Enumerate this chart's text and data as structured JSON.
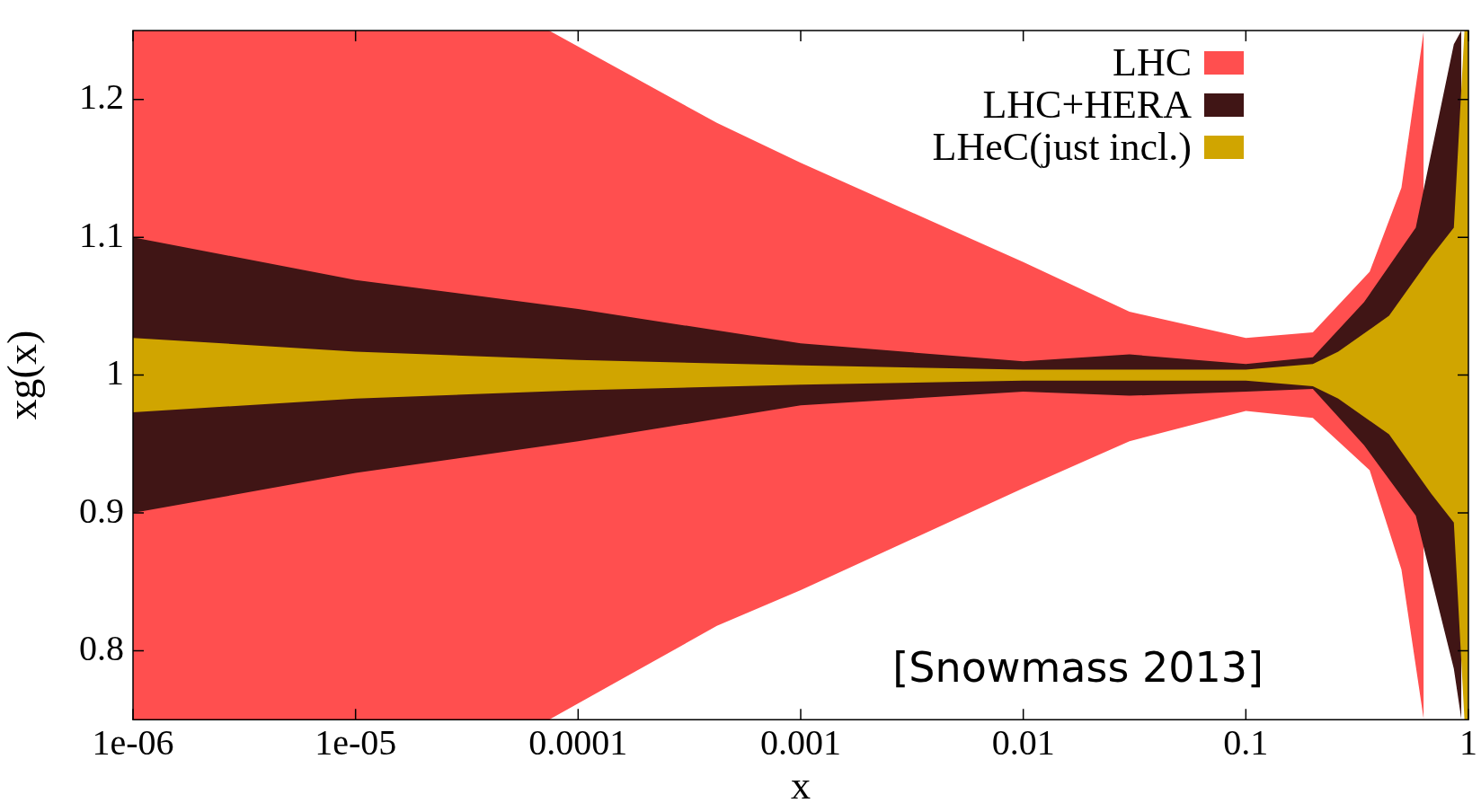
{
  "chart_data": {
    "type": "line",
    "xlabel": "x",
    "ylabel": "xg(x)",
    "log": "x",
    "xlim": [
      1e-06,
      1
    ],
    "xticks": [
      {
        "value": 1e-06,
        "label": "1e-06"
      },
      {
        "value": 1e-05,
        "label": "1e-05"
      },
      0.0001,
      0.001,
      0.01,
      0.1,
      1
    ],
    "ylim": [
      0.75,
      1.25
    ],
    "yticks": [
      0.8,
      0.9,
      1,
      1.1,
      1.2
    ],
    "grid": false,
    "legend": "top right",
    "series": [
      {
        "name": "LHC",
        "color": "#ff4f4f",
        "x": [
          1e-06,
          7.4e-05,
          0.00042,
          0.001,
          0.01,
          0.03,
          0.1,
          0.2,
          0.36,
          0.5,
          0.63
        ],
        "values": [
          null,
          null,
          null,
          null,
          null,
          null,
          null,
          null,
          null,
          null,
          null
        ],
        "upper": [
          1.25,
          1.25,
          1.183,
          1.154,
          1.082,
          1.046,
          1.027,
          1.031,
          1.075,
          1.136,
          1.25
        ],
        "lower": [
          0.75,
          0.75,
          0.818,
          0.844,
          0.918,
          0.952,
          0.974,
          0.969,
          0.931,
          0.859,
          0.75
        ]
      },
      {
        "name": "LHC+HERA",
        "color": "#401515",
        "x": [
          1e-06,
          1e-05,
          0.0001,
          0.001,
          0.01,
          0.03,
          0.1,
          0.2,
          0.34,
          0.58,
          0.86,
          0.93
        ],
        "values": [
          null,
          null,
          null,
          null,
          null,
          null,
          null,
          null,
          null,
          null,
          null,
          null
        ],
        "upper": [
          1.1,
          1.069,
          1.048,
          1.023,
          1.01,
          1.015,
          1.008,
          1.013,
          1.053,
          1.107,
          1.24,
          1.25
        ],
        "lower": [
          0.9,
          0.929,
          0.952,
          0.978,
          0.988,
          0.985,
          0.988,
          0.99,
          0.949,
          0.898,
          0.787,
          0.75
        ]
      },
      {
        "name": "LHeC(just incl.)",
        "color": "#d0a500",
        "x": [
          1e-06,
          1e-05,
          0.0001,
          0.001,
          0.01,
          0.1,
          0.2,
          0.26,
          0.44,
          0.68,
          0.86,
          0.96,
          1
        ],
        "values": [
          null,
          null,
          null,
          null,
          null,
          null,
          null,
          null,
          null,
          null,
          null,
          null,
          null
        ],
        "upper": [
          1.027,
          1.017,
          1.011,
          1.007,
          1.004,
          1.004,
          1.008,
          1.017,
          1.043,
          1.086,
          1.107,
          1.25,
          1.25
        ],
        "lower": [
          0.973,
          0.983,
          0.989,
          0.993,
          0.996,
          0.996,
          0.992,
          0.983,
          0.957,
          0.914,
          0.893,
          0.75,
          0.75
        ]
      }
    ],
    "annotations": [
      "[Snowmass 2013]"
    ]
  }
}
